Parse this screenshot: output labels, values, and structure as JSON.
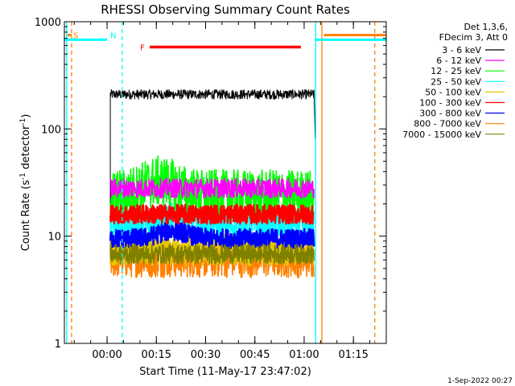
{
  "chart_data": {
    "type": "line",
    "title": "RHESSI Observing Summary Count Rates",
    "xlabel": "Start Time (11-May-17 23:47:02)",
    "ylabel_main": "Count Rate (s",
    "ylabel_sup1": "-1",
    "ylabel_mid": " detector",
    "ylabel_sup2": "-1",
    "ylabel_end": ")",
    "yscale": "log",
    "ylim": [
      1,
      1000
    ],
    "xlim_minutes": [
      -13,
      85
    ],
    "y_ticks": [
      {
        "value": 1,
        "label": "1"
      },
      {
        "value": 10,
        "label": "10"
      },
      {
        "value": 100,
        "label": "100"
      },
      {
        "value": 1000,
        "label": "1000"
      }
    ],
    "x_ticks": [
      {
        "minutes": 0,
        "label": "00:00"
      },
      {
        "minutes": 15,
        "label": "00:15"
      },
      {
        "minutes": 30,
        "label": "00:30"
      },
      {
        "minutes": 45,
        "label": "00:45"
      },
      {
        "minutes": 60,
        "label": "01:00"
      },
      {
        "minutes": 75,
        "label": "01:15"
      }
    ],
    "legend_header": [
      "Det 1,3,6,",
      "FDecim 3, Att 0"
    ],
    "series": [
      {
        "name": "3 - 6 keV",
        "color": "#000000",
        "level": 210,
        "noise": 0.015
      },
      {
        "name": "6 - 12 keV",
        "color": "#ff00ff",
        "level": 28,
        "noise": 0.03
      },
      {
        "name": "12 - 25 keV",
        "color": "#00ff00",
        "level": 24,
        "noise": 0.08
      },
      {
        "name": "25 - 50 keV",
        "color": "#00ffff",
        "level": 12.5,
        "noise": 0.05
      },
      {
        "name": "50 - 100 keV",
        "color": "#e6c800",
        "level": 7.5,
        "noise": 0.05
      },
      {
        "name": "100 - 300 keV",
        "color": "#ff0000",
        "level": 16,
        "noise": 0.03
      },
      {
        "name": "300 - 800 keV",
        "color": "#0000ff",
        "level": 9.5,
        "noise": 0.03
      },
      {
        "name": "800 - 7000 keV",
        "color": "#ff8000",
        "level": 6.2,
        "noise": 0.06
      },
      {
        "name": "7000 - 15000 keV",
        "color": "#808000",
        "level": 6.8,
        "noise": 0.03
      }
    ],
    "data_window_minutes": [
      1,
      63
    ],
    "flags": [
      {
        "label": "S",
        "color": "#ff8000",
        "bar_start": -12,
        "bar_end": -10.8,
        "level": 750
      },
      {
        "label": "N",
        "color": "#00ffff",
        "bar_start": -13,
        "bar_end": 0,
        "level": 680
      },
      {
        "label": "F",
        "color": "#ff0000",
        "bar_start": 13,
        "bar_end": 59,
        "level": 580
      },
      {
        "label": "",
        "color": "#00ffff",
        "bar_start": 63.5,
        "bar_end": 85,
        "level": 680
      },
      {
        "label": "",
        "color": "#ff8000",
        "bar_start": 66,
        "bar_end": 85,
        "level": 750
      }
    ],
    "vlines": [
      {
        "minutes": -12.3,
        "color": "#00ffff",
        "style": "solid"
      },
      {
        "minutes": -10.8,
        "color": "#ff8000",
        "style": "dashed"
      },
      {
        "minutes": 4.6,
        "color": "#00ffff",
        "style": "dashed"
      },
      {
        "minutes": 63.5,
        "color": "#00ffff",
        "style": "solid"
      },
      {
        "minutes": 65.4,
        "color": "#ff8000",
        "style": "solid"
      },
      {
        "minutes": 81.5,
        "color": "#ff8000",
        "style": "dashed"
      }
    ]
  },
  "footer": {
    "timestamp": "1-Sep-2022 00:27"
  }
}
